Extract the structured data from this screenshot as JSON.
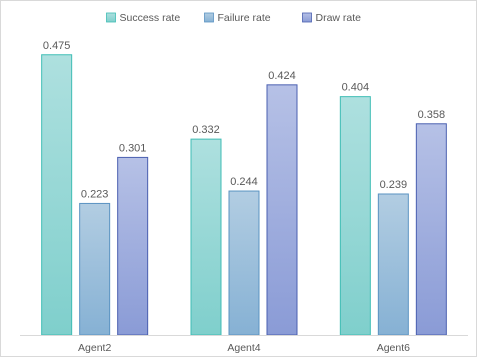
{
  "chart_data": {
    "type": "bar",
    "title": "",
    "xlabel": "",
    "ylabel": "",
    "categories": [
      "Agent2",
      "Agent4",
      "Agent6"
    ],
    "series": [
      {
        "name": "Success rate",
        "values": [
          0.475,
          0.332,
          0.404
        ],
        "labels": [
          "0.475",
          "0.332",
          "0.404"
        ],
        "color_top": "#aee0df",
        "color_bottom": "#7fcfcc",
        "stroke": "#3fbdb5"
      },
      {
        "name": "Failure rate",
        "values": [
          0.223,
          0.244,
          0.239
        ],
        "labels": [
          "0.223",
          "0.244",
          "0.239"
        ],
        "color_top": "#b2cde2",
        "color_bottom": "#86b1d4",
        "stroke": "#5a93c2"
      },
      {
        "name": "Draw rate",
        "values": [
          0.301,
          0.424,
          0.358
        ],
        "labels": [
          "0.301",
          "0.424",
          "0.358"
        ],
        "color_top": "#b6c1e6",
        "color_bottom": "#8a9bd6",
        "stroke": "#4a5fb0"
      }
    ],
    "ylim": [
      0,
      0.5
    ],
    "grid": false,
    "legend_position": "top-center"
  }
}
